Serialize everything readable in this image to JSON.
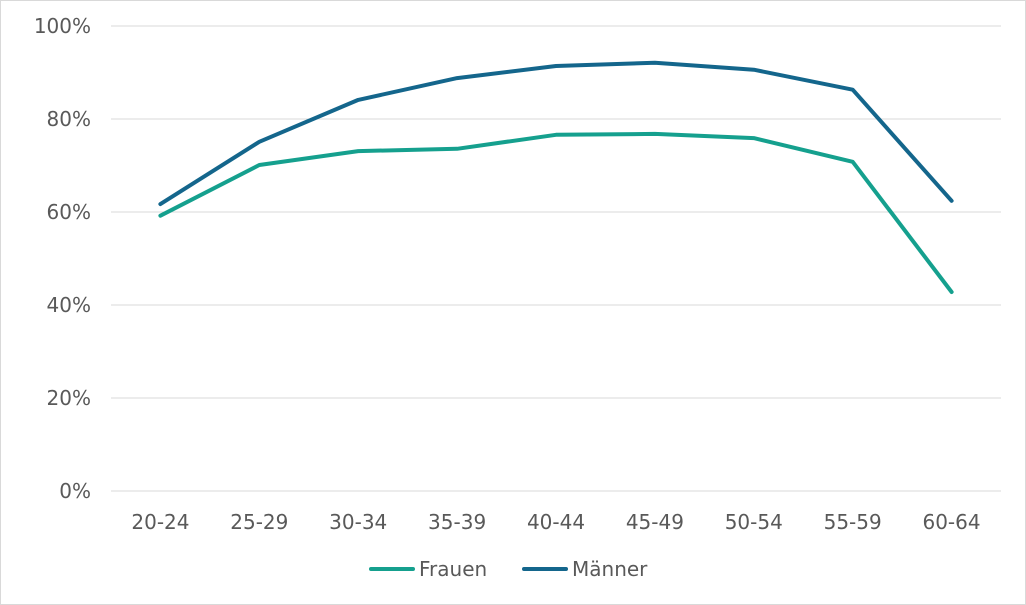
{
  "chart_data": {
    "type": "line",
    "title": "",
    "xlabel": "",
    "ylabel": "",
    "categories": [
      "20-24",
      "25-29",
      "30-34",
      "35-39",
      "40-44",
      "45-49",
      "50-54",
      "55-59",
      "60-64"
    ],
    "y_ticks": [
      "0%",
      "20%",
      "40%",
      "60%",
      "80%",
      "100%"
    ],
    "ylim": [
      0,
      100
    ],
    "y_unit": "percent",
    "grid": "horizontal",
    "legend_position": "bottom-center",
    "series": [
      {
        "name": "Frauen",
        "color": "#15a08e",
        "values": [
          59.2,
          70.1,
          73.1,
          73.6,
          76.6,
          76.8,
          75.9,
          70.8,
          42.8
        ]
      },
      {
        "name": "Männer",
        "color": "#14668c",
        "values": [
          61.7,
          75.1,
          84.1,
          88.8,
          91.4,
          92.1,
          90.6,
          86.3,
          62.4
        ]
      }
    ]
  }
}
